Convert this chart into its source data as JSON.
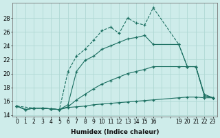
{
  "xlabel": "Humidex (Indice chaleur)",
  "background_color": "#ceecea",
  "grid_color": "#b0d8d4",
  "line_color": "#1a6e60",
  "lines": [
    {
      "x": [
        0,
        1,
        2,
        3,
        4,
        5,
        6,
        7,
        8,
        9,
        10,
        11,
        12,
        13,
        14,
        15,
        16,
        19,
        20,
        21,
        22,
        23
      ],
      "y": [
        15.3,
        14.8,
        15.0,
        15.0,
        14.9,
        14.8,
        15.1,
        15.2,
        15.3,
        15.5,
        15.6,
        15.7,
        15.8,
        15.9,
        16.0,
        16.1,
        16.2,
        16.5,
        16.6,
        16.6,
        16.5,
        16.5
      ],
      "marker": true
    },
    {
      "x": [
        0,
        1,
        2,
        3,
        4,
        5,
        6,
        7,
        8,
        9,
        10,
        11,
        12,
        13,
        14,
        15,
        16,
        19,
        20,
        21,
        22,
        23
      ],
      "y": [
        15.3,
        14.8,
        15.0,
        15.0,
        14.9,
        14.8,
        15.2,
        16.2,
        17.0,
        17.8,
        18.5,
        19.0,
        19.5,
        20.0,
        20.3,
        20.6,
        21.0,
        21.0,
        21.0,
        21.0,
        17.0,
        16.5
      ],
      "marker": true
    },
    {
      "x": [
        0,
        1,
        2,
        3,
        4,
        5,
        6,
        7,
        8,
        9,
        10,
        11,
        12,
        13,
        14,
        15,
        16,
        19,
        20,
        21,
        22,
        23
      ],
      "y": [
        15.3,
        14.8,
        15.0,
        15.0,
        14.9,
        14.8,
        15.5,
        20.3,
        21.9,
        22.5,
        23.5,
        24.0,
        24.5,
        25.0,
        25.2,
        25.5,
        24.2,
        24.2,
        21.0,
        21.0,
        16.8,
        16.5
      ],
      "marker": true
    },
    {
      "x": [
        0,
        2,
        3,
        4,
        5,
        6,
        7,
        8,
        9,
        10,
        11,
        12,
        13,
        14,
        15,
        16,
        19,
        20,
        21,
        22,
        23
      ],
      "y": [
        15.3,
        15.0,
        15.0,
        14.9,
        14.8,
        20.3,
        22.5,
        23.5,
        24.8,
        26.2,
        26.7,
        25.8,
        28.0,
        27.3,
        27.0,
        29.5,
        24.2,
        21.0,
        21.0,
        16.8,
        16.5
      ],
      "marker": true
    }
  ],
  "xlim": [
    -0.5,
    23.5
  ],
  "ylim": [
    13.8,
    30.2
  ],
  "yticks": [
    14,
    16,
    18,
    20,
    22,
    24,
    26,
    28
  ],
  "xtick_labels": [
    "0",
    "1",
    "2",
    "3",
    "4",
    "5",
    "6",
    "7",
    "8",
    "9",
    "10",
    "11",
    "12",
    "13",
    "14",
    "15",
    "16",
    "",
    "",
    "19",
    "20",
    "21",
    "22",
    "23"
  ],
  "xtick_positions": [
    0,
    1,
    2,
    3,
    4,
    5,
    6,
    7,
    8,
    9,
    10,
    11,
    12,
    13,
    14,
    15,
    16,
    17,
    18,
    19,
    20,
    21,
    22,
    23
  ]
}
